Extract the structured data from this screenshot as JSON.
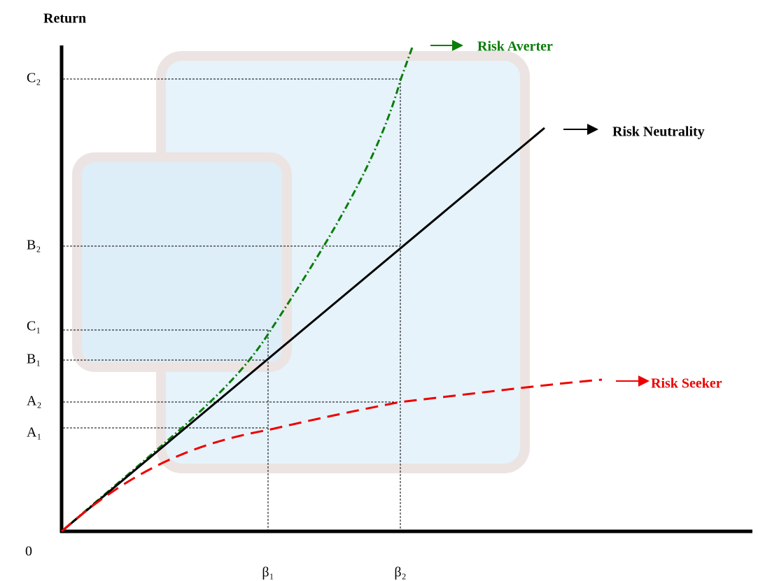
{
  "axis_title": "Return",
  "origin_label": "0",
  "y_labels": [
    "C₂",
    "B₂",
    "C₁",
    "B₁",
    "A₂",
    "A₁"
  ],
  "x_labels": [
    "β₁",
    "β₂"
  ],
  "curves": [
    {
      "label": "Risk Averter"
    },
    {
      "label": "Risk Neutrality"
    },
    {
      "label": "Risk Seeker"
    }
  ]
}
